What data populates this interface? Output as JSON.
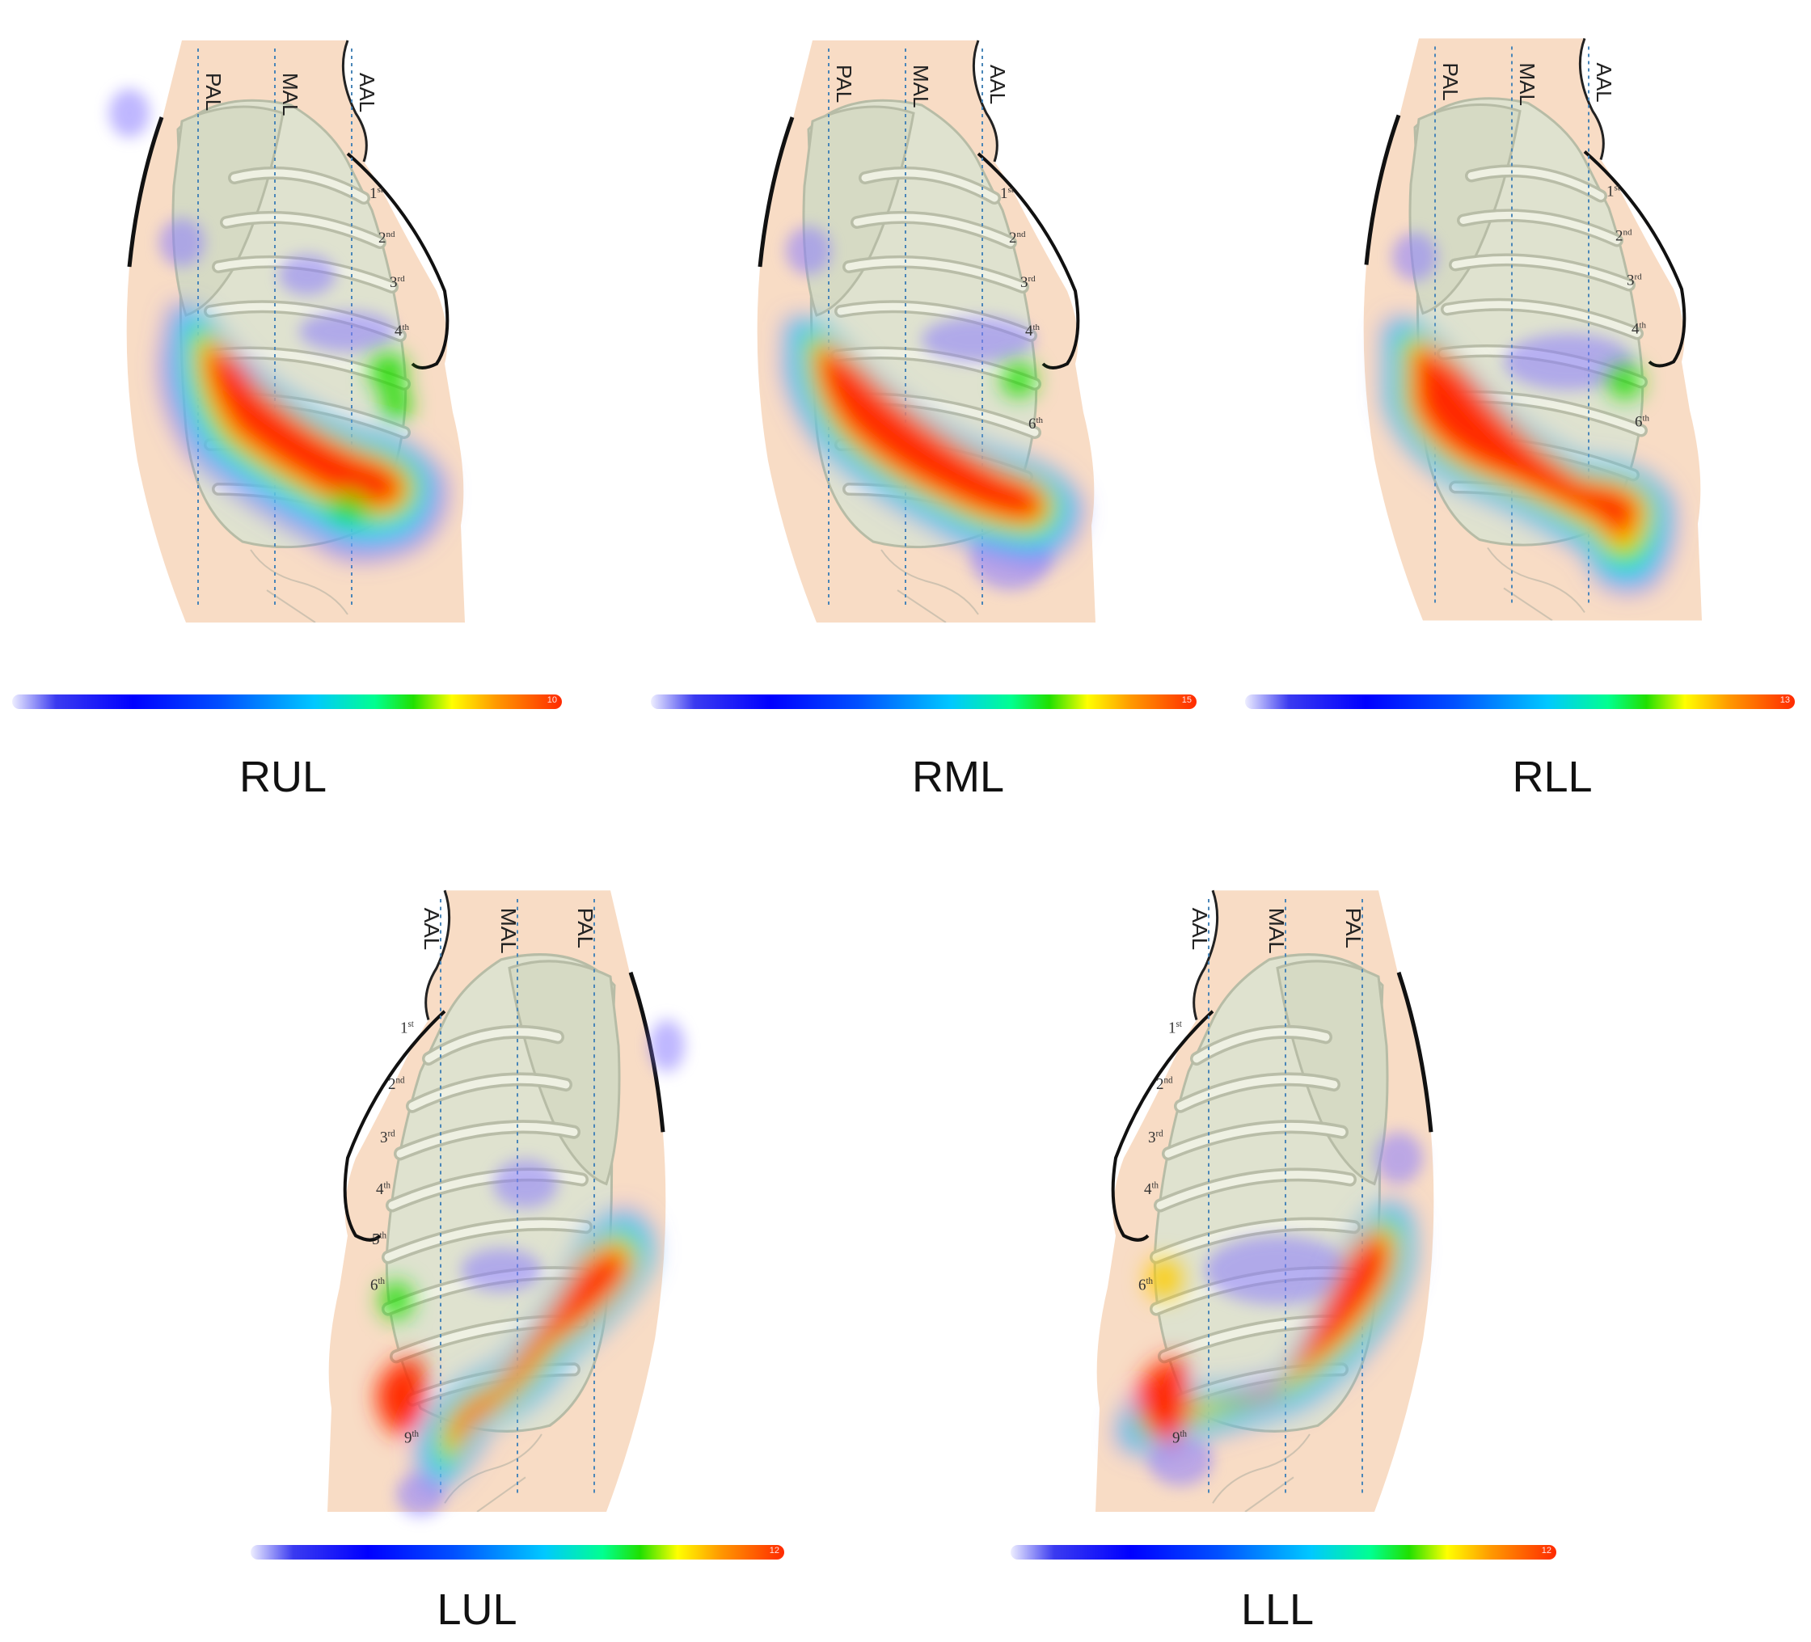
{
  "panels": [
    {
      "id": "rul",
      "title": "RUL",
      "scale_max": "10",
      "side": "right"
    },
    {
      "id": "rml",
      "title": "RML",
      "scale_max": "15",
      "side": "right"
    },
    {
      "id": "rll",
      "title": "RLL",
      "scale_max": "13",
      "side": "right"
    },
    {
      "id": "lul",
      "title": "LUL",
      "scale_max": "12",
      "side": "left"
    },
    {
      "id": "lll",
      "title": "LLL",
      "scale_max": "12",
      "side": "left"
    }
  ],
  "line_labels": {
    "pal": "PAL",
    "mal": "MAL",
    "aal": "AAL"
  },
  "rib_labels": {
    "first": "1",
    "first_sup": "st",
    "second": "2",
    "second_sup": "nd",
    "third": "3",
    "third_sup": "rd",
    "fourth": "4",
    "fourth_sup": "th",
    "fifth": "5",
    "fifth_sup": "th",
    "sixth": "6",
    "sixth_sup": "th",
    "ninth": "9",
    "ninth_sup": "th"
  },
  "colors": {
    "skin": "#f8dcc5",
    "bone": "#dfe2cf",
    "bone_edge": "#b7bca6",
    "outline": "#111111",
    "guide": "#4a86b8"
  }
}
